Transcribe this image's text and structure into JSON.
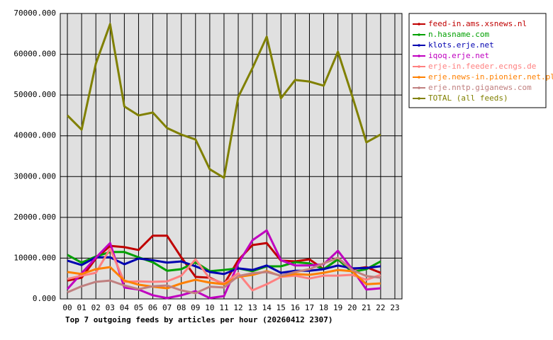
{
  "chart_data": {
    "type": "line",
    "title": "Top 7 outgoing feeds by articles per hour (20260412 2307)",
    "categories": [
      "00",
      "01",
      "02",
      "03",
      "04",
      "05",
      "06",
      "07",
      "08",
      "09",
      "10",
      "11",
      "12",
      "13",
      "14",
      "15",
      "16",
      "17",
      "18",
      "19",
      "20",
      "21",
      "22",
      "23"
    ],
    "ylim": [
      0,
      70000
    ],
    "yticks": [
      {
        "value": 0,
        "label": "0.000"
      },
      {
        "value": 10000,
        "label": "10000.000"
      },
      {
        "value": 20000,
        "label": "20000.000"
      },
      {
        "value": 30000,
        "label": "30000.000"
      },
      {
        "value": 40000,
        "label": "40000.000"
      },
      {
        "value": 50000,
        "label": "50000.000"
      },
      {
        "value": 60000,
        "label": "60000.000"
      },
      {
        "value": 70000,
        "label": "70000.000"
      }
    ],
    "grid": true,
    "legend": "right",
    "series": [
      {
        "name": "feed-in.ams.xsnews.nl",
        "color": "#c00000",
        "values": [
          4500,
          5200,
          9900,
          13000,
          12700,
          12000,
          15500,
          15500,
          10200,
          5400,
          5200,
          3600,
          9500,
          13200,
          13700,
          9400,
          9200,
          9700,
          7300,
          9700,
          7300,
          7800,
          6400,
          null
        ]
      },
      {
        "name": "n.hasname.com",
        "color": "#00a000",
        "values": [
          10800,
          8900,
          10400,
          11500,
          11500,
          10200,
          9000,
          6900,
          7300,
          9000,
          6800,
          7100,
          7500,
          6800,
          8000,
          8000,
          9000,
          8700,
          7300,
          9700,
          6600,
          7300,
          9200,
          null
        ]
      },
      {
        "name": "klots.erje.net",
        "color": "#0000b0",
        "values": [
          9400,
          8300,
          10200,
          10200,
          8500,
          9900,
          9500,
          8900,
          9200,
          8000,
          6600,
          6100,
          7500,
          7100,
          8200,
          6400,
          6900,
          6900,
          7300,
          8200,
          7500,
          7600,
          8000,
          null
        ]
      },
      {
        "name": "iqoq.erje.net",
        "color": "#c000c0",
        "values": [
          2400,
          6300,
          10100,
          13700,
          2800,
          2300,
          900,
          200,
          900,
          1900,
          200,
          700,
          8700,
          14400,
          16800,
          9500,
          8200,
          8200,
          8500,
          11800,
          7300,
          2300,
          2600,
          null
        ]
      },
      {
        "name": "erje-in.feeder.ecngs.de",
        "color": "#ff8080",
        "values": [
          4900,
          5700,
          6400,
          12300,
          4200,
          4300,
          4200,
          4300,
          5700,
          9700,
          5000,
          3800,
          6300,
          2100,
          3600,
          5400,
          5700,
          5000,
          5700,
          5700,
          5900,
          4700,
          5900,
          null
        ]
      },
      {
        "name": "erje.news-in.pionier.net.pl",
        "color": "#ff8000",
        "values": [
          6600,
          6100,
          7300,
          7800,
          4500,
          3500,
          3000,
          2600,
          3800,
          4700,
          4000,
          3600,
          5400,
          5900,
          6800,
          5600,
          6100,
          5900,
          6400,
          7100,
          6800,
          3600,
          3800,
          null
        ]
      },
      {
        "name": "erje.nntp.giganews.com",
        "color": "#c08080",
        "values": [
          1600,
          3100,
          4200,
          4500,
          3300,
          2400,
          3100,
          3300,
          2100,
          1400,
          3000,
          2800,
          5600,
          6300,
          6600,
          5700,
          6600,
          7300,
          8700,
          10100,
          7100,
          5600,
          5200,
          null
        ]
      },
      {
        "name": "TOTAL (all feeds)",
        "color": "#808000",
        "values": [
          45000,
          41500,
          57700,
          67400,
          47200,
          45000,
          45700,
          41900,
          40300,
          39100,
          31800,
          29700,
          49500,
          56600,
          64300,
          49200,
          53700,
          53300,
          52300,
          60600,
          49800,
          38400,
          40300,
          null
        ]
      }
    ]
  }
}
